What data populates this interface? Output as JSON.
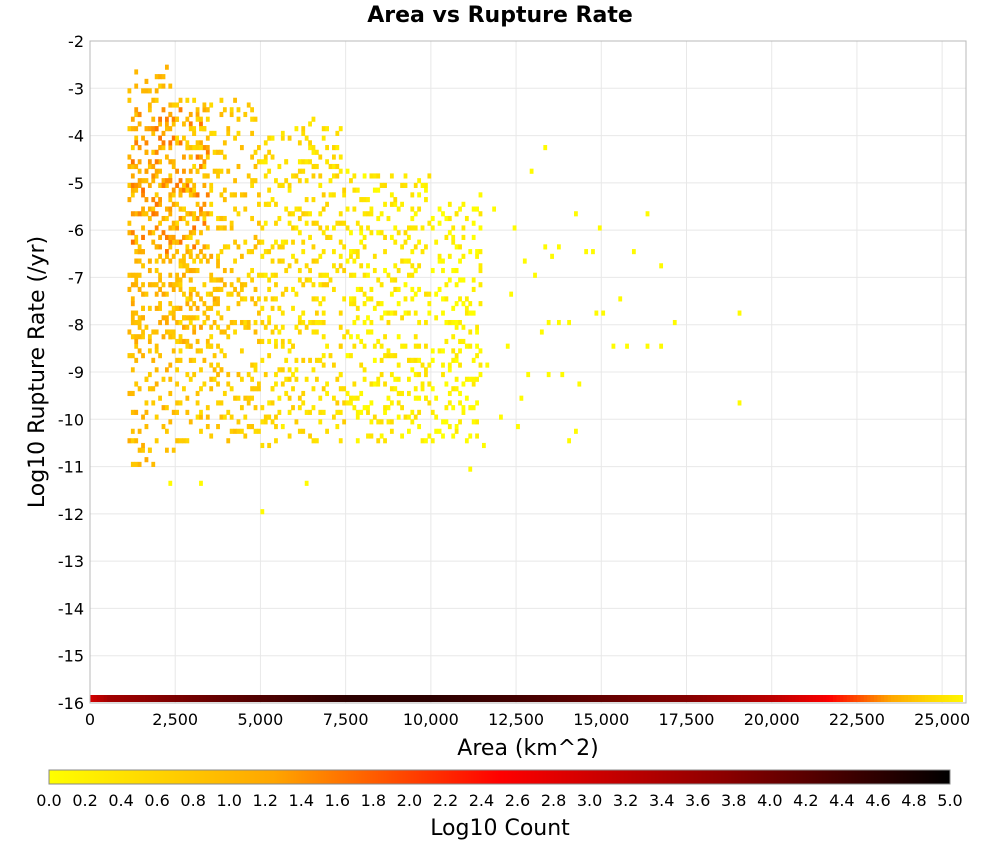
{
  "chart_data": {
    "type": "heatmap",
    "title": "Area vs Rupture Rate",
    "xlabel": "Area (km^2)",
    "ylabel": "Log10 Rupture Rate (/yr)",
    "xlim": [
      0,
      25700
    ],
    "ylim": [
      -16,
      -2
    ],
    "x_ticks": [
      "0",
      "2,500",
      "5,000",
      "7,500",
      "10,000",
      "12,500",
      "15,000",
      "17,500",
      "20,000",
      "22,500",
      "25,000"
    ],
    "x_tick_values": [
      0,
      2500,
      5000,
      7500,
      10000,
      12500,
      15000,
      17500,
      20000,
      22500,
      25000
    ],
    "y_ticks": [
      "-2",
      "-3",
      "-4",
      "-5",
      "-6",
      "-7",
      "-8",
      "-9",
      "-10",
      "-11",
      "-12",
      "-13",
      "-14",
      "-15",
      "-16"
    ],
    "y_tick_values": [
      -2,
      -3,
      -4,
      -5,
      -6,
      -7,
      -8,
      -9,
      -10,
      -11,
      -12,
      -13,
      -14,
      -15,
      -16
    ],
    "grid": true,
    "colorbar": {
      "label": "Log10 Count",
      "range": [
        0,
        5
      ],
      "ticks": [
        "0.0",
        "0.2",
        "0.4",
        "0.6",
        "0.8",
        "1.0",
        "1.2",
        "1.4",
        "1.6",
        "1.8",
        "2.0",
        "2.2",
        "2.4",
        "2.6",
        "2.8",
        "3.0",
        "3.2",
        "3.4",
        "3.6",
        "3.8",
        "4.0",
        "4.2",
        "4.4",
        "4.6",
        "4.8",
        "5.0"
      ],
      "colors": [
        "#ffff00",
        "#ffa500",
        "#ff0000",
        "#8b0000",
        "#000000"
      ]
    },
    "cell_size": {
      "dx_km2": 100,
      "dy_log10": 0.1
    },
    "bottom_row": {
      "y": -16,
      "x_range": [
        0,
        25600
      ],
      "control_points": [
        {
          "x": 0,
          "log10_count": 3.0
        },
        {
          "x": 500,
          "log10_count": 3.5
        },
        {
          "x": 2500,
          "log10_count": 3.9
        },
        {
          "x": 5000,
          "log10_count": 4.3
        },
        {
          "x": 7500,
          "log10_count": 4.6
        },
        {
          "x": 10000,
          "log10_count": 4.6
        },
        {
          "x": 12500,
          "log10_count": 4.4
        },
        {
          "x": 15000,
          "log10_count": 4.1
        },
        {
          "x": 17500,
          "log10_count": 3.8
        },
        {
          "x": 20000,
          "log10_count": 3.2
        },
        {
          "x": 21500,
          "log10_count": 2.6
        },
        {
          "x": 22500,
          "log10_count": 1.9
        },
        {
          "x": 23500,
          "log10_count": 1.2
        },
        {
          "x": 24500,
          "log10_count": 0.6
        },
        {
          "x": 25600,
          "log10_count": 0.1
        }
      ]
    },
    "density_regions": [
      {
        "x_range": [
          1100,
          2500
        ],
        "y_range": [
          -11.0,
          -2.6
        ],
        "log10_count": 0.9
      },
      {
        "x_range": [
          1200,
          3500
        ],
        "y_range": [
          -6.5,
          -3.8
        ],
        "log10_count": 1.4
      },
      {
        "x_range": [
          1200,
          4000
        ],
        "y_range": [
          -8.5,
          -6.5
        ],
        "log10_count": 1.0
      },
      {
        "x_range": [
          2500,
          5000
        ],
        "y_range": [
          -10.5,
          -3.5
        ],
        "log10_count": 0.7
      },
      {
        "x_range": [
          5000,
          7500
        ],
        "y_range": [
          -10.6,
          -3.8
        ],
        "log10_count": 0.45
      },
      {
        "x_range": [
          7500,
          10000
        ],
        "y_range": [
          -10.5,
          -4.8
        ],
        "log10_count": 0.25
      },
      {
        "x_range": [
          10000,
          11500
        ],
        "y_range": [
          -10.5,
          -5.5
        ],
        "log10_count": 0.1
      }
    ],
    "sparse_points": [
      {
        "x": 2300,
        "y": -11.4
      },
      {
        "x": 3200,
        "y": -11.4
      },
      {
        "x": 5000,
        "y": -12.0
      },
      {
        "x": 6300,
        "y": -11.4
      },
      {
        "x": 11100,
        "y": -11.1
      },
      {
        "x": 13300,
        "y": -4.3
      },
      {
        "x": 12900,
        "y": -4.8
      },
      {
        "x": 14200,
        "y": -5.7
      },
      {
        "x": 14900,
        "y": -6.0
      },
      {
        "x": 16300,
        "y": -5.7
      },
      {
        "x": 16700,
        "y": -6.8
      },
      {
        "x": 15900,
        "y": -6.5
      },
      {
        "x": 14700,
        "y": -6.5
      },
      {
        "x": 14500,
        "y": -6.5
      },
      {
        "x": 15500,
        "y": -7.5
      },
      {
        "x": 15000,
        "y": -7.8
      },
      {
        "x": 14800,
        "y": -7.8
      },
      {
        "x": 17100,
        "y": -8.0
      },
      {
        "x": 19000,
        "y": -7.8
      },
      {
        "x": 19000,
        "y": -9.7
      },
      {
        "x": 15300,
        "y": -8.5
      },
      {
        "x": 15700,
        "y": -8.5
      },
      {
        "x": 16300,
        "y": -8.5
      },
      {
        "x": 16700,
        "y": -8.5
      },
      {
        "x": 14000,
        "y": -8.0
      },
      {
        "x": 13700,
        "y": -8.0
      },
      {
        "x": 13400,
        "y": -8.0
      },
      {
        "x": 14200,
        "y": -10.3
      },
      {
        "x": 14000,
        "y": -10.5
      },
      {
        "x": 14300,
        "y": -9.3
      },
      {
        "x": 13800,
        "y": -9.1
      },
      {
        "x": 13400,
        "y": -9.1
      },
      {
        "x": 12800,
        "y": -9.1
      },
      {
        "x": 12600,
        "y": -9.6
      },
      {
        "x": 12500,
        "y": -10.2
      },
      {
        "x": 12000,
        "y": -10.0
      },
      {
        "x": 11500,
        "y": -10.6
      },
      {
        "x": 11200,
        "y": -10.1
      },
      {
        "x": 12300,
        "y": -7.4
      },
      {
        "x": 12700,
        "y": -6.7
      },
      {
        "x": 13300,
        "y": -6.4
      },
      {
        "x": 13500,
        "y": -6.6
      },
      {
        "x": 13700,
        "y": -6.4
      },
      {
        "x": 12400,
        "y": -6.0
      },
      {
        "x": 13000,
        "y": -7.0
      },
      {
        "x": 11800,
        "y": -5.6
      },
      {
        "x": 11400,
        "y": -5.3
      },
      {
        "x": 11600,
        "y": -8.9
      },
      {
        "x": 12200,
        "y": -8.5
      },
      {
        "x": 13200,
        "y": -8.2
      }
    ]
  }
}
